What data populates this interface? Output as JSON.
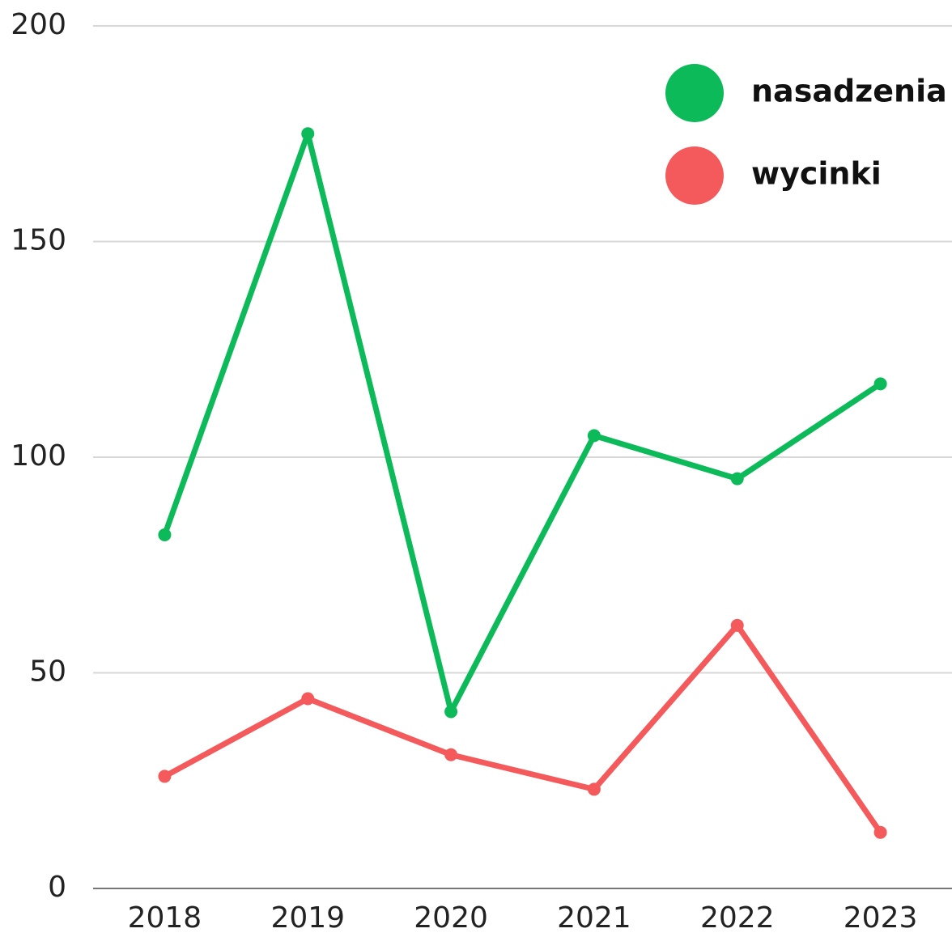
{
  "chart_data": {
    "type": "line",
    "categories": [
      "2018",
      "2019",
      "2020",
      "2021",
      "2022",
      "2023"
    ],
    "series": [
      {
        "name": "nasadzenia",
        "color": "#0dba5a",
        "values": [
          82,
          175,
          41,
          105,
          95,
          117
        ]
      },
      {
        "name": "wycinki",
        "color": "#f45a5b",
        "values": [
          26,
          44,
          31,
          23,
          61,
          13
        ]
      }
    ],
    "ylim": [
      0,
      200
    ],
    "yticks": [
      0,
      50,
      100,
      150,
      200
    ],
    "grid": true,
    "legend": "top-right"
  }
}
